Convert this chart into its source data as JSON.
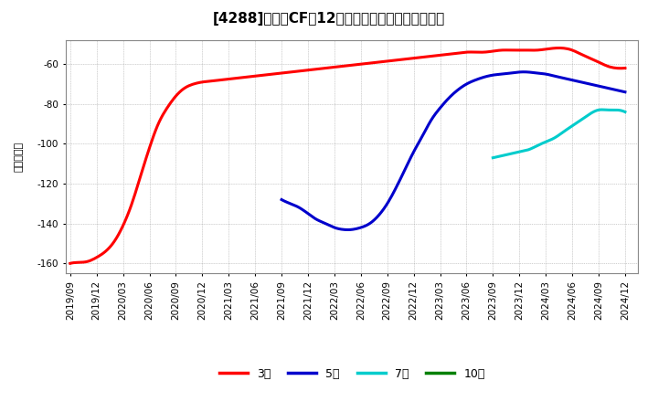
{
  "title": "[4288]　投賄CFの12か月移動合計の平均値の推移",
  "ylabel": "（百万円）",
  "ylim": [
    -165,
    -48
  ],
  "yticks": [
    -160,
    -140,
    -120,
    -100,
    -80,
    -60
  ],
  "background_color": "#ffffff",
  "grid_color": "#aaaaaa",
  "series": {
    "3year": {
      "color": "#ff0000",
      "points": [
        [
          0,
          -160
        ],
        [
          1,
          -159.5
        ],
        [
          2,
          -159
        ],
        [
          3,
          -157
        ],
        [
          4,
          -154
        ],
        [
          5,
          -149
        ],
        [
          6,
          -141
        ],
        [
          7,
          -130
        ],
        [
          8,
          -116
        ],
        [
          9,
          -102
        ],
        [
          10,
          -90
        ],
        [
          11,
          -82
        ],
        [
          12,
          -76
        ],
        [
          13,
          -72
        ],
        [
          14,
          -70
        ],
        [
          15,
          -69
        ],
        [
          16,
          -68.5
        ],
        [
          17,
          -68
        ],
        [
          18,
          -67.5
        ],
        [
          19,
          -67
        ],
        [
          20,
          -66.5
        ],
        [
          21,
          -66
        ],
        [
          22,
          -65.5
        ],
        [
          23,
          -65
        ],
        [
          24,
          -64.5
        ],
        [
          25,
          -64
        ],
        [
          26,
          -63.5
        ],
        [
          27,
          -63
        ],
        [
          28,
          -62.5
        ],
        [
          29,
          -62
        ],
        [
          30,
          -61.5
        ],
        [
          31,
          -61
        ],
        [
          32,
          -60.5
        ],
        [
          33,
          -60
        ],
        [
          34,
          -59.5
        ],
        [
          35,
          -59
        ],
        [
          36,
          -58.5
        ],
        [
          37,
          -58
        ],
        [
          38,
          -57.5
        ],
        [
          39,
          -57
        ],
        [
          40,
          -56.5
        ],
        [
          41,
          -56
        ],
        [
          42,
          -55.5
        ],
        [
          43,
          -55
        ],
        [
          44,
          -54.5
        ],
        [
          45,
          -54
        ],
        [
          46,
          -54
        ],
        [
          47,
          -54
        ],
        [
          48,
          -53.5
        ],
        [
          49,
          -53
        ],
        [
          50,
          -53
        ],
        [
          51,
          -53
        ],
        [
          52,
          -53
        ],
        [
          53,
          -53
        ],
        [
          54,
          -52.5
        ],
        [
          55,
          -52
        ],
        [
          56,
          -52
        ],
        [
          57,
          -53
        ],
        [
          58,
          -55
        ],
        [
          59,
          -57
        ],
        [
          60,
          -59
        ],
        [
          61,
          -61
        ],
        [
          62,
          -62
        ],
        [
          63,
          -62
        ]
      ]
    },
    "5year": {
      "color": "#0000cc",
      "points": [
        [
          24,
          -128
        ],
        [
          25,
          -130
        ],
        [
          26,
          -132
        ],
        [
          27,
          -135
        ],
        [
          28,
          -138
        ],
        [
          29,
          -140
        ],
        [
          30,
          -142
        ],
        [
          31,
          -143
        ],
        [
          32,
          -143
        ],
        [
          33,
          -142
        ],
        [
          34,
          -140
        ],
        [
          35,
          -136
        ],
        [
          36,
          -130
        ],
        [
          37,
          -122
        ],
        [
          38,
          -113
        ],
        [
          39,
          -104
        ],
        [
          40,
          -96
        ],
        [
          41,
          -88
        ],
        [
          42,
          -82
        ],
        [
          43,
          -77
        ],
        [
          44,
          -73
        ],
        [
          45,
          -70
        ],
        [
          46,
          -68
        ],
        [
          47,
          -66.5
        ],
        [
          48,
          -65.5
        ],
        [
          49,
          -65
        ],
        [
          50,
          -64.5
        ],
        [
          51,
          -64
        ],
        [
          52,
          -64
        ],
        [
          53,
          -64.5
        ],
        [
          54,
          -65
        ],
        [
          55,
          -66
        ],
        [
          56,
          -67
        ],
        [
          57,
          -68
        ],
        [
          58,
          -69
        ],
        [
          59,
          -70
        ],
        [
          60,
          -71
        ],
        [
          61,
          -72
        ],
        [
          62,
          -73
        ],
        [
          63,
          -74
        ]
      ]
    },
    "7year": {
      "color": "#00cccc",
      "points": [
        [
          48,
          -107
        ],
        [
          49,
          -106
        ],
        [
          50,
          -105
        ],
        [
          51,
          -104
        ],
        [
          52,
          -103
        ],
        [
          53,
          -101
        ],
        [
          54,
          -99
        ],
        [
          55,
          -97
        ],
        [
          56,
          -94
        ],
        [
          57,
          -91
        ],
        [
          58,
          -88
        ],
        [
          59,
          -85
        ],
        [
          60,
          -83
        ],
        [
          61,
          -83
        ],
        [
          62,
          -83
        ],
        [
          63,
          -84
        ]
      ]
    },
    "10year": {
      "color": "#008000",
      "points": []
    }
  },
  "x_labels": [
    "2019/09",
    "2019/12",
    "2020/03",
    "2020/06",
    "2020/09",
    "2020/12",
    "2021/03",
    "2021/06",
    "2021/09",
    "2021/12",
    "2022/03",
    "2022/06",
    "2022/09",
    "2022/12",
    "2023/03",
    "2023/06",
    "2023/09",
    "2023/12",
    "2024/03",
    "2024/06",
    "2024/09",
    "2024/12"
  ],
  "x_label_indices": [
    0,
    3,
    6,
    9,
    12,
    15,
    18,
    21,
    24,
    27,
    30,
    33,
    36,
    39,
    42,
    45,
    48,
    51,
    54,
    57,
    60,
    63
  ],
  "legend": [
    {
      "label": "3年",
      "color": "#ff0000"
    },
    {
      "label": "5年",
      "color": "#0000cc"
    },
    {
      "label": "7年",
      "color": "#00cccc"
    },
    {
      "label": "10年",
      "color": "#008000"
    }
  ]
}
